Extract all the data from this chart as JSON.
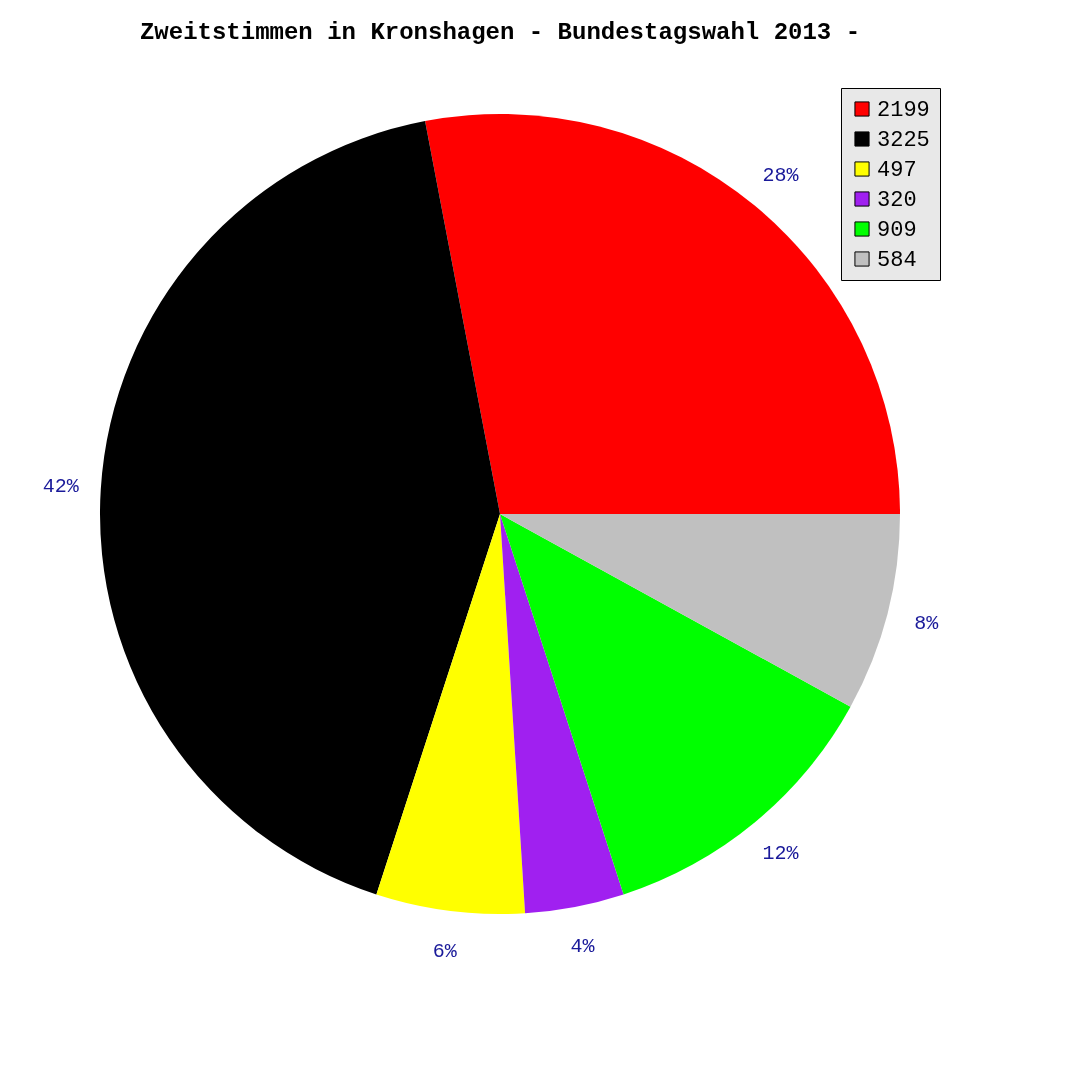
{
  "chart_data": {
    "type": "pie",
    "title": "Zweitstimmen in Kronshagen - Bundestagswahl 2013 -",
    "categories": [
      "2199",
      "3225",
      "497",
      "320",
      "909",
      "584"
    ],
    "values": [
      28,
      42,
      6,
      4,
      12,
      8
    ],
    "colors": [
      "#ff0000",
      "#000000",
      "#ffff00",
      "#a020f0",
      "#00ff00",
      "#c0c0c0"
    ],
    "value_labels": [
      "28%",
      "42%",
      "6%",
      "4%",
      "12%",
      "8%"
    ],
    "legend": "top right"
  }
}
